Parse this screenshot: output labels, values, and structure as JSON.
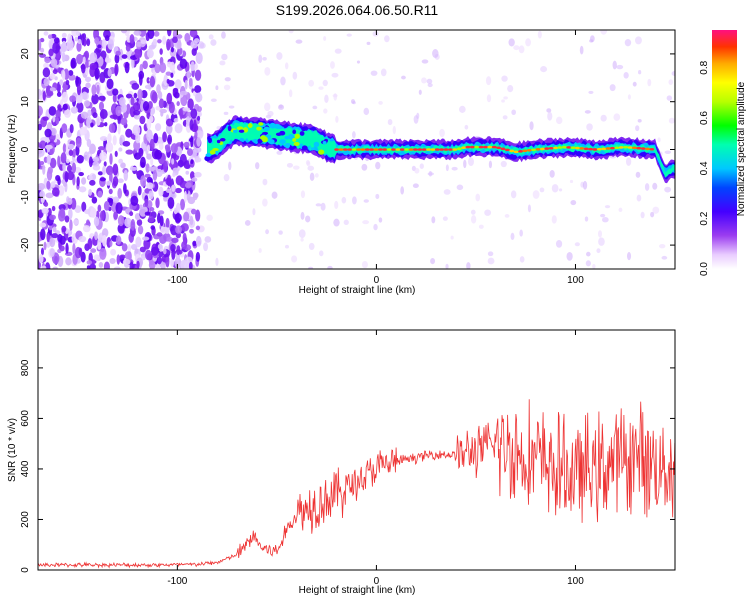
{
  "title": "S199.2026.064.06.50.R11",
  "chart_data": [
    {
      "type": "heatmap",
      "xlabel": "Height of straight line (km)",
      "ylabel": "Frequency (Hz)",
      "xlim": [
        -170,
        150
      ],
      "ylim": [
        -25,
        25
      ],
      "xticks": [
        -100,
        0,
        100
      ],
      "yticks": [
        -20,
        -10,
        0,
        10,
        20
      ],
      "colorbar": {
        "label": "Normalized spectral amplitude",
        "range": [
          0,
          0.95
        ],
        "ticks": [
          0.0,
          0.2,
          0.4,
          0.6,
          0.8
        ]
      },
      "ridge": [
        {
          "x": -85,
          "y": 0
        },
        {
          "x": -80,
          "y": 1
        },
        {
          "x": -75,
          "y": 3
        },
        {
          "x": -70,
          "y": 4
        },
        {
          "x": -60,
          "y": 3.5
        },
        {
          "x": -50,
          "y": 3
        },
        {
          "x": -40,
          "y": 2.5
        },
        {
          "x": -30,
          "y": 2
        },
        {
          "x": -25,
          "y": 0.5
        },
        {
          "x": -20,
          "y": 0
        },
        {
          "x": 0,
          "y": 0
        },
        {
          "x": 20,
          "y": 0
        },
        {
          "x": 40,
          "y": 0
        },
        {
          "x": 45,
          "y": 0.5
        },
        {
          "x": 60,
          "y": 0.5
        },
        {
          "x": 70,
          "y": -0.5
        },
        {
          "x": 80,
          "y": 0
        },
        {
          "x": 95,
          "y": 0.5
        },
        {
          "x": 110,
          "y": 0
        },
        {
          "x": 125,
          "y": 0.5
        },
        {
          "x": 140,
          "y": 0
        },
        {
          "x": 145,
          "y": -5
        },
        {
          "x": 150,
          "y": -4
        }
      ]
    },
    {
      "type": "line",
      "xlabel": "Height of straight line (km)",
      "ylabel": "SNR (10 * v/v)",
      "xlim": [
        -170,
        150
      ],
      "ylim": [
        0,
        950
      ],
      "xticks": [
        -100,
        0,
        100
      ],
      "yticks": [
        0,
        200,
        400,
        600,
        800
      ],
      "color": "#ee3333",
      "series": [
        {
          "x": [
            -170,
            -150,
            -130,
            -110,
            -90,
            -80,
            -70,
            -65,
            -62,
            -58,
            -50,
            -45,
            -40,
            -30,
            -20,
            -10,
            0,
            10,
            20,
            30,
            40,
            50,
            60,
            70,
            80,
            90,
            100,
            110,
            120,
            130,
            140,
            150
          ],
          "values": [
            20,
            20,
            20,
            20,
            22,
            30,
            60,
            100,
            140,
            90,
            70,
            160,
            220,
            270,
            300,
            350,
            400,
            430,
            445,
            460,
            455,
            470,
            500,
            470,
            440,
            400,
            380,
            400,
            430,
            450,
            420,
            410
          ]
        }
      ]
    }
  ]
}
